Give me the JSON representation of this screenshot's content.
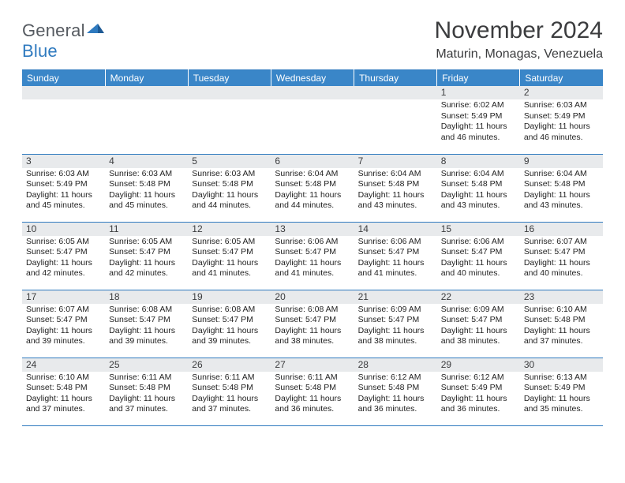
{
  "logo": {
    "word1": "General",
    "word2": "Blue",
    "glyph_color": "#2f7abf"
  },
  "title": "November 2024",
  "location": "Maturin, Monagas, Venezuela",
  "colors": {
    "header_bg": "#3a86c8",
    "header_text": "#ffffff",
    "daybar_bg": "#e8eaec",
    "border": "#2f7abf",
    "text": "#3b3c3e"
  },
  "day_headers": [
    "Sunday",
    "Monday",
    "Tuesday",
    "Wednesday",
    "Thursday",
    "Friday",
    "Saturday"
  ],
  "weeks": [
    [
      {
        "n": "",
        "t": null
      },
      {
        "n": "",
        "t": null
      },
      {
        "n": "",
        "t": null
      },
      {
        "n": "",
        "t": null
      },
      {
        "n": "",
        "t": null
      },
      {
        "n": "1",
        "t": {
          "sr": "6:02 AM",
          "ss": "5:49 PM",
          "dl": "11 hours and 46 minutes."
        }
      },
      {
        "n": "2",
        "t": {
          "sr": "6:03 AM",
          "ss": "5:49 PM",
          "dl": "11 hours and 46 minutes."
        }
      }
    ],
    [
      {
        "n": "3",
        "t": {
          "sr": "6:03 AM",
          "ss": "5:49 PM",
          "dl": "11 hours and 45 minutes."
        }
      },
      {
        "n": "4",
        "t": {
          "sr": "6:03 AM",
          "ss": "5:48 PM",
          "dl": "11 hours and 45 minutes."
        }
      },
      {
        "n": "5",
        "t": {
          "sr": "6:03 AM",
          "ss": "5:48 PM",
          "dl": "11 hours and 44 minutes."
        }
      },
      {
        "n": "6",
        "t": {
          "sr": "6:04 AM",
          "ss": "5:48 PM",
          "dl": "11 hours and 44 minutes."
        }
      },
      {
        "n": "7",
        "t": {
          "sr": "6:04 AM",
          "ss": "5:48 PM",
          "dl": "11 hours and 43 minutes."
        }
      },
      {
        "n": "8",
        "t": {
          "sr": "6:04 AM",
          "ss": "5:48 PM",
          "dl": "11 hours and 43 minutes."
        }
      },
      {
        "n": "9",
        "t": {
          "sr": "6:04 AM",
          "ss": "5:48 PM",
          "dl": "11 hours and 43 minutes."
        }
      }
    ],
    [
      {
        "n": "10",
        "t": {
          "sr": "6:05 AM",
          "ss": "5:47 PM",
          "dl": "11 hours and 42 minutes."
        }
      },
      {
        "n": "11",
        "t": {
          "sr": "6:05 AM",
          "ss": "5:47 PM",
          "dl": "11 hours and 42 minutes."
        }
      },
      {
        "n": "12",
        "t": {
          "sr": "6:05 AM",
          "ss": "5:47 PM",
          "dl": "11 hours and 41 minutes."
        }
      },
      {
        "n": "13",
        "t": {
          "sr": "6:06 AM",
          "ss": "5:47 PM",
          "dl": "11 hours and 41 minutes."
        }
      },
      {
        "n": "14",
        "t": {
          "sr": "6:06 AM",
          "ss": "5:47 PM",
          "dl": "11 hours and 41 minutes."
        }
      },
      {
        "n": "15",
        "t": {
          "sr": "6:06 AM",
          "ss": "5:47 PM",
          "dl": "11 hours and 40 minutes."
        }
      },
      {
        "n": "16",
        "t": {
          "sr": "6:07 AM",
          "ss": "5:47 PM",
          "dl": "11 hours and 40 minutes."
        }
      }
    ],
    [
      {
        "n": "17",
        "t": {
          "sr": "6:07 AM",
          "ss": "5:47 PM",
          "dl": "11 hours and 39 minutes."
        }
      },
      {
        "n": "18",
        "t": {
          "sr": "6:08 AM",
          "ss": "5:47 PM",
          "dl": "11 hours and 39 minutes."
        }
      },
      {
        "n": "19",
        "t": {
          "sr": "6:08 AM",
          "ss": "5:47 PM",
          "dl": "11 hours and 39 minutes."
        }
      },
      {
        "n": "20",
        "t": {
          "sr": "6:08 AM",
          "ss": "5:47 PM",
          "dl": "11 hours and 38 minutes."
        }
      },
      {
        "n": "21",
        "t": {
          "sr": "6:09 AM",
          "ss": "5:47 PM",
          "dl": "11 hours and 38 minutes."
        }
      },
      {
        "n": "22",
        "t": {
          "sr": "6:09 AM",
          "ss": "5:47 PM",
          "dl": "11 hours and 38 minutes."
        }
      },
      {
        "n": "23",
        "t": {
          "sr": "6:10 AM",
          "ss": "5:48 PM",
          "dl": "11 hours and 37 minutes."
        }
      }
    ],
    [
      {
        "n": "24",
        "t": {
          "sr": "6:10 AM",
          "ss": "5:48 PM",
          "dl": "11 hours and 37 minutes."
        }
      },
      {
        "n": "25",
        "t": {
          "sr": "6:11 AM",
          "ss": "5:48 PM",
          "dl": "11 hours and 37 minutes."
        }
      },
      {
        "n": "26",
        "t": {
          "sr": "6:11 AM",
          "ss": "5:48 PM",
          "dl": "11 hours and 37 minutes."
        }
      },
      {
        "n": "27",
        "t": {
          "sr": "6:11 AM",
          "ss": "5:48 PM",
          "dl": "11 hours and 36 minutes."
        }
      },
      {
        "n": "28",
        "t": {
          "sr": "6:12 AM",
          "ss": "5:48 PM",
          "dl": "11 hours and 36 minutes."
        }
      },
      {
        "n": "29",
        "t": {
          "sr": "6:12 AM",
          "ss": "5:49 PM",
          "dl": "11 hours and 36 minutes."
        }
      },
      {
        "n": "30",
        "t": {
          "sr": "6:13 AM",
          "ss": "5:49 PM",
          "dl": "11 hours and 35 minutes."
        }
      }
    ]
  ],
  "labels": {
    "sunrise": "Sunrise:",
    "sunset": "Sunset:",
    "daylight": "Daylight:"
  }
}
